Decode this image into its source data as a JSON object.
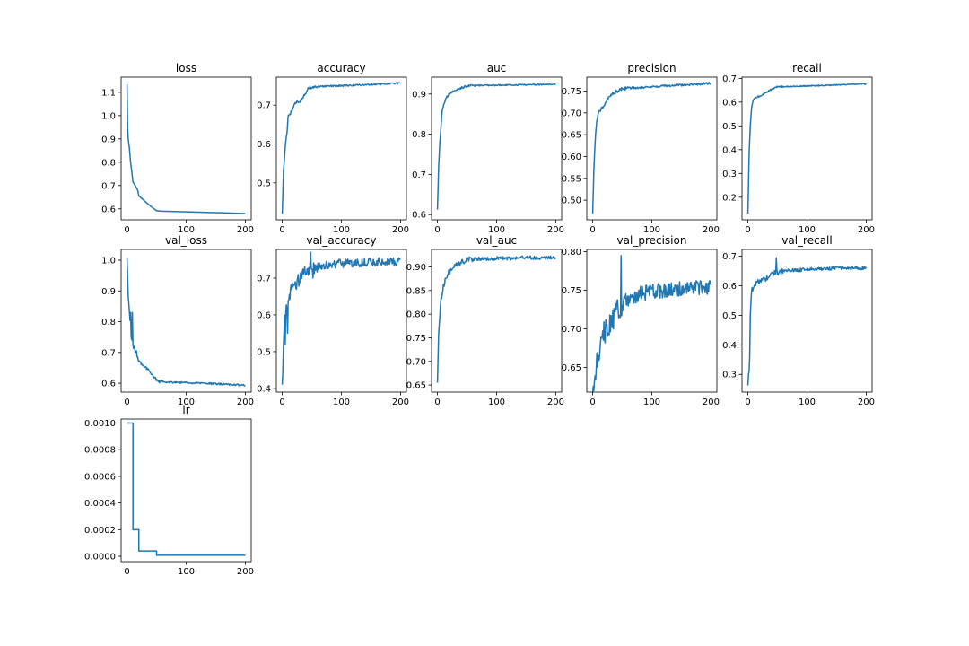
{
  "figure": {
    "line_color": "#1f77b4",
    "background": "#ffffff"
  },
  "chart_data": [
    {
      "type": "line",
      "title": "loss",
      "xlabel": "",
      "ylabel": "",
      "x_ticks": [
        "0",
        "100",
        "200"
      ],
      "y_ticks": [
        "0.6",
        "0.7",
        "0.8",
        "0.9",
        "1.0",
        "1.1"
      ],
      "xlim": [
        -10,
        210
      ],
      "ylim": [
        0.553,
        1.165
      ],
      "tick_format": 1,
      "noise": 0,
      "points": [
        [
          0,
          1.135
        ],
        [
          1,
          0.95
        ],
        [
          2,
          0.9
        ],
        [
          4,
          0.86
        ],
        [
          6,
          0.8
        ],
        [
          8,
          0.76
        ],
        [
          10,
          0.715
        ],
        [
          14,
          0.7
        ],
        [
          18,
          0.68
        ],
        [
          20,
          0.655
        ],
        [
          25,
          0.645
        ],
        [
          30,
          0.633
        ],
        [
          40,
          0.611
        ],
        [
          50,
          0.592
        ],
        [
          60,
          0.59
        ],
        [
          100,
          0.587
        ],
        [
          150,
          0.584
        ],
        [
          200,
          0.58
        ]
      ]
    },
    {
      "type": "line",
      "title": "accuracy",
      "xlabel": "",
      "ylabel": "",
      "x_ticks": [
        "0",
        "100",
        "200"
      ],
      "y_ticks": [
        "0.5",
        "0.6",
        "0.7"
      ],
      "xlim": [
        -10,
        210
      ],
      "ylim": [
        0.405,
        0.772
      ],
      "tick_format": 1,
      "noise": 0.002,
      "points": [
        [
          0,
          0.42
        ],
        [
          2,
          0.53
        ],
        [
          4,
          0.57
        ],
        [
          6,
          0.61
        ],
        [
          8,
          0.63
        ],
        [
          10,
          0.67
        ],
        [
          14,
          0.68
        ],
        [
          18,
          0.69
        ],
        [
          20,
          0.7
        ],
        [
          25,
          0.71
        ],
        [
          30,
          0.71
        ],
        [
          35,
          0.72
        ],
        [
          40,
          0.73
        ],
        [
          45,
          0.745
        ],
        [
          50,
          0.745
        ],
        [
          60,
          0.747
        ],
        [
          80,
          0.749
        ],
        [
          100,
          0.75
        ],
        [
          150,
          0.753
        ],
        [
          200,
          0.757
        ]
      ]
    },
    {
      "type": "line",
      "title": "auc",
      "xlabel": "",
      "ylabel": "",
      "x_ticks": [
        "0",
        "100",
        "200"
      ],
      "y_ticks": [
        "0.6",
        "0.7",
        "0.8",
        "0.9"
      ],
      "xlim": [
        -10,
        210
      ],
      "ylim": [
        0.587,
        0.942
      ],
      "tick_format": 1,
      "noise": 0.0015,
      "points": [
        [
          0,
          0.61
        ],
        [
          2,
          0.72
        ],
        [
          4,
          0.78
        ],
        [
          6,
          0.82
        ],
        [
          8,
          0.86
        ],
        [
          10,
          0.87
        ],
        [
          14,
          0.89
        ],
        [
          18,
          0.895
        ],
        [
          20,
          0.9
        ],
        [
          25,
          0.905
        ],
        [
          30,
          0.91
        ],
        [
          40,
          0.915
        ],
        [
          50,
          0.92
        ],
        [
          60,
          0.921
        ],
        [
          100,
          0.922
        ],
        [
          150,
          0.923
        ],
        [
          200,
          0.924
        ]
      ]
    },
    {
      "type": "line",
      "title": "precision",
      "xlabel": "",
      "ylabel": "",
      "x_ticks": [
        "0",
        "100",
        "200"
      ],
      "y_ticks": [
        "0.50",
        "0.55",
        "0.60",
        "0.65",
        "0.70",
        "0.75"
      ],
      "xlim": [
        -10,
        210
      ],
      "ylim": [
        0.455,
        0.782
      ],
      "tick_format": 2,
      "noise": 0.0025,
      "points": [
        [
          0,
          0.47
        ],
        [
          2,
          0.57
        ],
        [
          4,
          0.63
        ],
        [
          6,
          0.67
        ],
        [
          8,
          0.69
        ],
        [
          10,
          0.7
        ],
        [
          14,
          0.71
        ],
        [
          18,
          0.715
        ],
        [
          20,
          0.72
        ],
        [
          25,
          0.73
        ],
        [
          30,
          0.74
        ],
        [
          40,
          0.75
        ],
        [
          50,
          0.755
        ],
        [
          60,
          0.757
        ],
        [
          100,
          0.76
        ],
        [
          150,
          0.764
        ],
        [
          200,
          0.768
        ]
      ]
    },
    {
      "type": "line",
      "title": "recall",
      "xlabel": "",
      "ylabel": "",
      "x_ticks": [
        "0",
        "100",
        "200"
      ],
      "y_ticks": [
        "0.2",
        "0.3",
        "0.4",
        "0.5",
        "0.6",
        "0.7"
      ],
      "xlim": [
        -10,
        210
      ],
      "ylim": [
        0.105,
        0.705
      ],
      "tick_format": 1,
      "noise": 0.002,
      "points": [
        [
          0,
          0.13
        ],
        [
          2,
          0.38
        ],
        [
          4,
          0.5
        ],
        [
          6,
          0.57
        ],
        [
          8,
          0.6
        ],
        [
          10,
          0.61
        ],
        [
          14,
          0.62
        ],
        [
          20,
          0.625
        ],
        [
          25,
          0.63
        ],
        [
          30,
          0.64
        ],
        [
          40,
          0.655
        ],
        [
          50,
          0.665
        ],
        [
          60,
          0.665
        ],
        [
          100,
          0.668
        ],
        [
          150,
          0.672
        ],
        [
          200,
          0.677
        ]
      ]
    },
    {
      "type": "line",
      "title": "val_loss",
      "xlabel": "",
      "ylabel": "",
      "x_ticks": [
        "0",
        "100",
        "200"
      ],
      "y_ticks": [
        "0.6",
        "0.7",
        "0.8",
        "0.9",
        "1.0"
      ],
      "xlim": [
        -10,
        210
      ],
      "ylim": [
        0.571,
        1.035
      ],
      "tick_format": 1,
      "noise": 0.003,
      "points": [
        [
          0,
          1.01
        ],
        [
          2,
          0.88
        ],
        [
          4,
          0.83
        ],
        [
          6,
          0.77
        ],
        [
          8,
          0.74
        ],
        [
          10,
          0.72
        ],
        [
          15,
          0.7
        ],
        [
          20,
          0.67
        ],
        [
          30,
          0.655
        ],
        [
          40,
          0.635
        ],
        [
          50,
          0.61
        ],
        [
          55,
          0.605
        ],
        [
          100,
          0.602
        ],
        [
          150,
          0.598
        ],
        [
          200,
          0.593
        ]
      ],
      "spikes": [
        [
          6,
          0.83
        ],
        [
          7,
          0.75
        ],
        [
          9,
          0.83
        ],
        [
          12,
          0.72
        ],
        [
          16,
          0.705
        ]
      ]
    },
    {
      "type": "line",
      "title": "val_accuracy",
      "xlabel": "",
      "ylabel": "",
      "x_ticks": [
        "0",
        "100",
        "200"
      ],
      "y_ticks": [
        "0.4",
        "0.5",
        "0.6",
        "0.7"
      ],
      "xlim": [
        -10,
        210
      ],
      "ylim": [
        0.39,
        0.778
      ],
      "tick_format": 1,
      "noise": 0.012,
      "points": [
        [
          0,
          0.41
        ],
        [
          3,
          0.57
        ],
        [
          5,
          0.6
        ],
        [
          7,
          0.62
        ],
        [
          10,
          0.65
        ],
        [
          15,
          0.67
        ],
        [
          20,
          0.68
        ],
        [
          30,
          0.7
        ],
        [
          40,
          0.715
        ],
        [
          50,
          0.73
        ],
        [
          70,
          0.735
        ],
        [
          100,
          0.74
        ],
        [
          150,
          0.743
        ],
        [
          200,
          0.745
        ]
      ],
      "spikes": [
        [
          5,
          0.52
        ],
        [
          9,
          0.55
        ],
        [
          48,
          0.77
        ],
        [
          52,
          0.7
        ]
      ]
    },
    {
      "type": "line",
      "title": "val_auc",
      "xlabel": "",
      "ylabel": "",
      "x_ticks": [
        "0",
        "100",
        "200"
      ],
      "y_ticks": [
        "0.65",
        "0.70",
        "0.75",
        "0.80",
        "0.85",
        "0.90"
      ],
      "xlim": [
        -10,
        210
      ],
      "ylim": [
        0.635,
        0.937
      ],
      "tick_format": 2,
      "noise": 0.004,
      "points": [
        [
          0,
          0.65
        ],
        [
          2,
          0.76
        ],
        [
          4,
          0.8
        ],
        [
          6,
          0.83
        ],
        [
          10,
          0.86
        ],
        [
          15,
          0.88
        ],
        [
          20,
          0.89
        ],
        [
          30,
          0.9
        ],
        [
          40,
          0.91
        ],
        [
          50,
          0.915
        ],
        [
          60,
          0.917
        ],
        [
          100,
          0.918
        ],
        [
          150,
          0.919
        ],
        [
          200,
          0.92
        ]
      ]
    },
    {
      "type": "line",
      "title": "val_precision",
      "xlabel": "",
      "ylabel": "",
      "x_ticks": [
        "0",
        "100",
        "200"
      ],
      "y_ticks": [
        "0.65",
        "0.70",
        "0.75",
        "0.80"
      ],
      "xlim": [
        -10,
        210
      ],
      "ylim": [
        0.618,
        0.803
      ],
      "tick_format": 2,
      "noise": 0.01,
      "points": [
        [
          0,
          0.625
        ],
        [
          4,
          0.64
        ],
        [
          8,
          0.66
        ],
        [
          12,
          0.68
        ],
        [
          20,
          0.695
        ],
        [
          30,
          0.71
        ],
        [
          40,
          0.72
        ],
        [
          50,
          0.73
        ],
        [
          60,
          0.735
        ],
        [
          80,
          0.745
        ],
        [
          100,
          0.748
        ],
        [
          150,
          0.752
        ],
        [
          200,
          0.755
        ]
      ],
      "spikes": [
        [
          2,
          0.62
        ],
        [
          48,
          0.795
        ],
        [
          50,
          0.73
        ]
      ]
    },
    {
      "type": "line",
      "title": "val_recall",
      "xlabel": "",
      "ylabel": "",
      "x_ticks": [
        "0",
        "100",
        "200"
      ],
      "y_ticks": [
        "0.3",
        "0.4",
        "0.5",
        "0.6",
        "0.7"
      ],
      "xlim": [
        -10,
        210
      ],
      "ylim": [
        0.24,
        0.723
      ],
      "tick_format": 1,
      "noise": 0.006,
      "points": [
        [
          0,
          0.26
        ],
        [
          2,
          0.32
        ],
        [
          4,
          0.5
        ],
        [
          6,
          0.58
        ],
        [
          10,
          0.6
        ],
        [
          15,
          0.61
        ],
        [
          20,
          0.615
        ],
        [
          30,
          0.625
        ],
        [
          40,
          0.64
        ],
        [
          50,
          0.645
        ],
        [
          60,
          0.65
        ],
        [
          100,
          0.655
        ],
        [
          150,
          0.66
        ],
        [
          200,
          0.66
        ]
      ],
      "spikes": [
        [
          1,
          0.3
        ],
        [
          3,
          0.36
        ],
        [
          48,
          0.695
        ],
        [
          50,
          0.64
        ]
      ]
    },
    {
      "type": "line",
      "title": "lr",
      "xlabel": "",
      "ylabel": "",
      "x_ticks": [
        "0",
        "100",
        "200"
      ],
      "y_ticks": [
        "0.0000",
        "0.0002",
        "0.0004",
        "0.0006",
        "0.0008",
        "0.0010"
      ],
      "xlim": [
        -10,
        210
      ],
      "ylim": [
        -4e-05,
        0.00103
      ],
      "tick_format": 4,
      "noise": 0,
      "step": true,
      "points": [
        [
          0,
          0.001
        ],
        [
          10,
          0.001
        ],
        [
          10,
          0.0002
        ],
        [
          20,
          0.0002
        ],
        [
          20,
          4e-05
        ],
        [
          50,
          4e-05
        ],
        [
          50,
          8e-06
        ],
        [
          200,
          8e-06
        ]
      ]
    }
  ]
}
